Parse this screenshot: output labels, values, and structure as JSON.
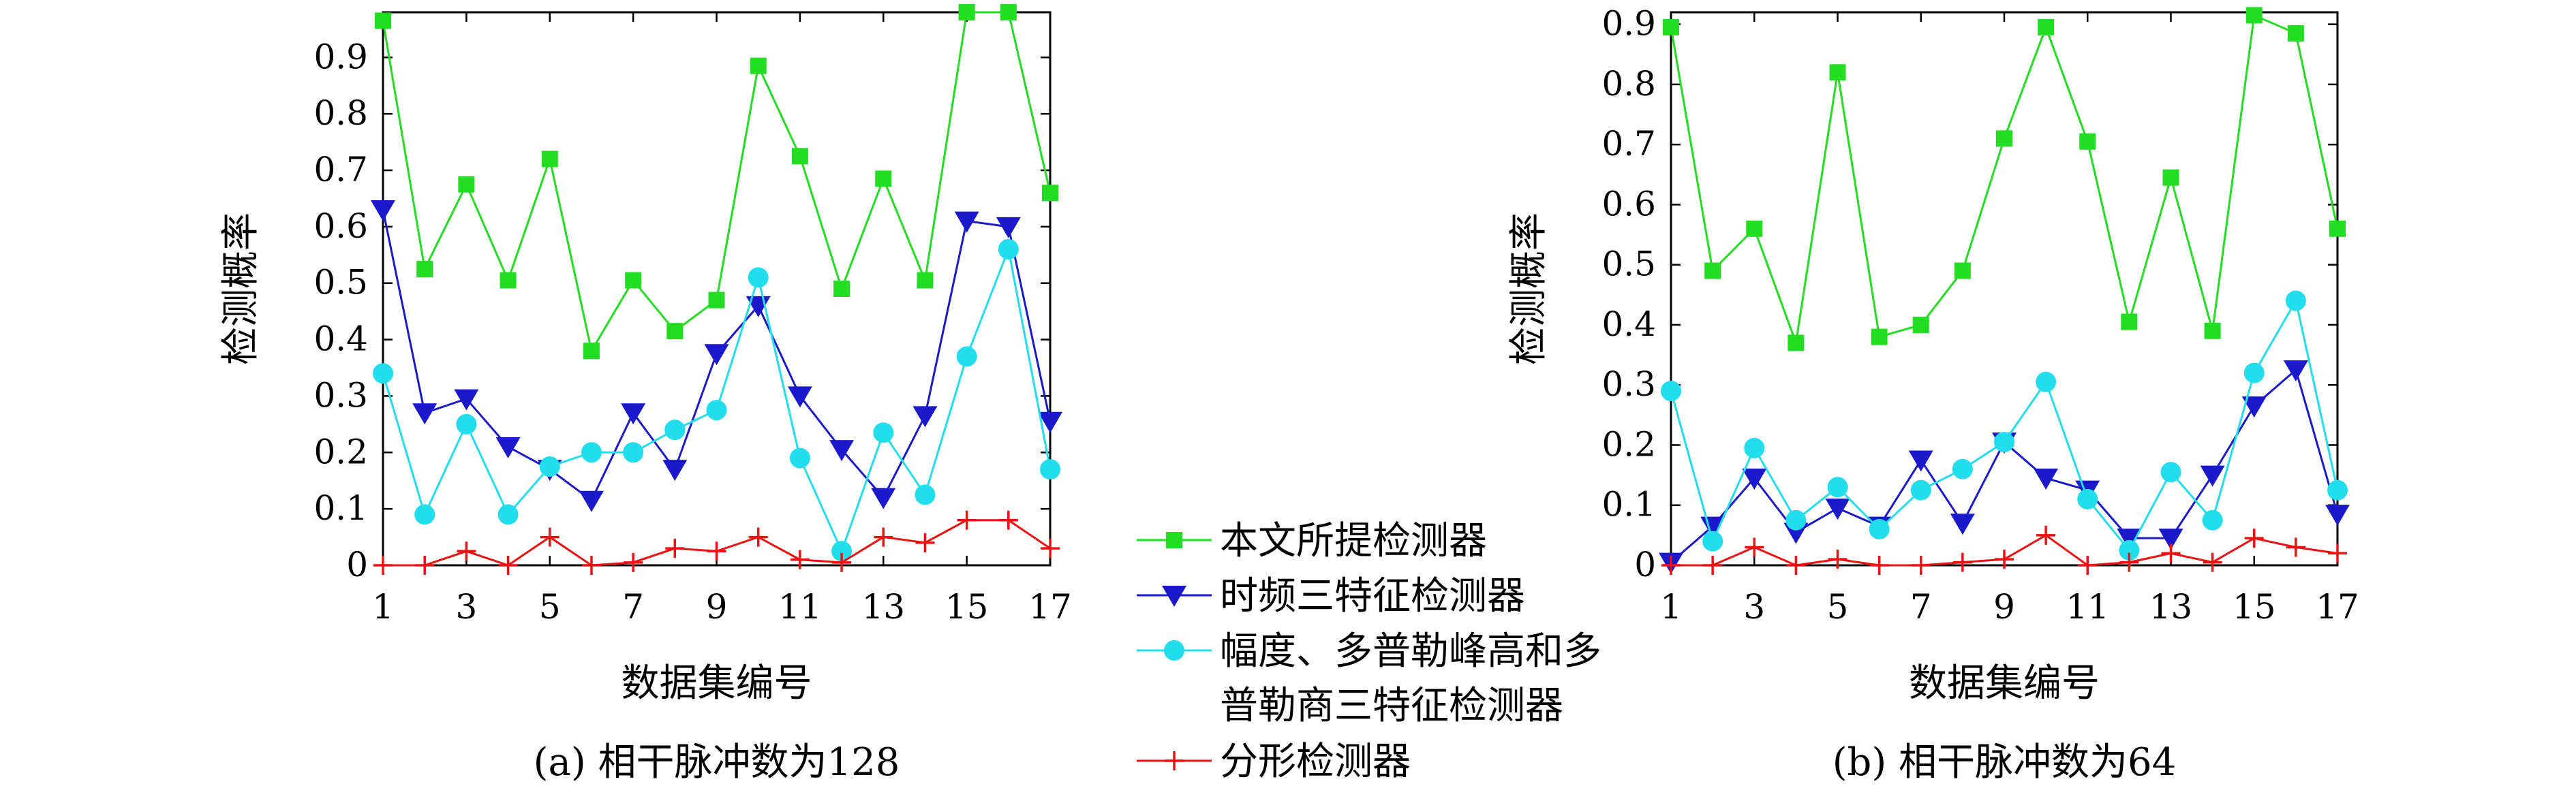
{
  "legend": {
    "placement": "center",
    "entries": [
      {
        "series": 0,
        "lines": [
          "本文所提检测器"
        ]
      },
      {
        "series": 1,
        "lines": [
          "时频三特征检测器"
        ]
      },
      {
        "series": 2,
        "lines": [
          "幅度、多普勒峰高和多",
          "普勒商三特征检测器"
        ]
      },
      {
        "series": 3,
        "lines": [
          "分形检测器"
        ]
      }
    ]
  },
  "chart_data": [
    {
      "type": "line",
      "caption": "(a) 相干脉冲数为128",
      "xlabel": "数据集编号",
      "ylabel": "检测概率",
      "xlim": [
        1,
        17
      ],
      "ylim": [
        0,
        0.98
      ],
      "xticks": [
        1,
        3,
        5,
        7,
        9,
        11,
        13,
        15,
        17
      ],
      "yticks": [
        0,
        0.1,
        0.2,
        0.3,
        0.4,
        0.5,
        0.6,
        0.7,
        0.8,
        0.9
      ],
      "x": [
        1,
        2,
        3,
        4,
        5,
        6,
        7,
        8,
        9,
        10,
        11,
        12,
        13,
        14,
        15,
        16,
        17
      ],
      "series": [
        {
          "name": "本文所提检测器",
          "color": "#22dd22",
          "marker": "square",
          "values": [
            0.965,
            0.525,
            0.675,
            0.505,
            0.72,
            0.38,
            0.505,
            0.415,
            0.47,
            0.885,
            0.725,
            0.49,
            0.685,
            0.505,
            0.98,
            0.98,
            0.66
          ]
        },
        {
          "name": "时频三特征检测器",
          "color": "#1a1acc",
          "marker": "triangle-down",
          "values": [
            0.63,
            0.27,
            0.295,
            0.21,
            0.17,
            0.115,
            0.27,
            0.17,
            0.375,
            0.46,
            0.3,
            0.205,
            0.12,
            0.265,
            0.61,
            0.6,
            0.255
          ]
        },
        {
          "name": "幅度、多普勒峰高和多普勒商三特征检测器",
          "color": "#22ddee",
          "marker": "circle",
          "values": [
            0.34,
            0.09,
            0.25,
            0.09,
            0.175,
            0.2,
            0.2,
            0.24,
            0.275,
            0.51,
            0.19,
            0.025,
            0.235,
            0.125,
            0.37,
            0.56,
            0.17
          ]
        },
        {
          "name": "分形检测器",
          "color": "#ee1111",
          "marker": "plus",
          "values": [
            0,
            0,
            0.025,
            0,
            0.05,
            0,
            0.005,
            0.03,
            0.025,
            0.05,
            0.01,
            0.005,
            0.05,
            0.04,
            0.08,
            0.08,
            0.03
          ]
        }
      ]
    },
    {
      "type": "line",
      "caption": "(b) 相干脉冲数为64",
      "xlabel": "数据集编号",
      "ylabel": "检测概率",
      "xlim": [
        1,
        17
      ],
      "ylim": [
        0,
        0.92
      ],
      "xticks": [
        1,
        3,
        5,
        7,
        9,
        11,
        13,
        15,
        17
      ],
      "yticks": [
        0,
        0.1,
        0.2,
        0.3,
        0.4,
        0.5,
        0.6,
        0.7,
        0.8,
        0.9
      ],
      "x": [
        1,
        2,
        3,
        4,
        5,
        6,
        7,
        8,
        9,
        10,
        11,
        12,
        13,
        14,
        15,
        16,
        17
      ],
      "series": [
        {
          "name": "本文所提检测器",
          "color": "#22dd22",
          "marker": "square",
          "values": [
            0.895,
            0.49,
            0.56,
            0.37,
            0.82,
            0.38,
            0.4,
            0.49,
            0.71,
            0.895,
            0.705,
            0.405,
            0.645,
            0.39,
            0.915,
            0.885,
            0.56
          ]
        },
        {
          "name": "时频三特征检测器",
          "color": "#1a1acc",
          "marker": "triangle-down",
          "values": [
            0.005,
            0.065,
            0.145,
            0.055,
            0.095,
            0.065,
            0.175,
            0.07,
            0.205,
            0.145,
            0.125,
            0.045,
            0.045,
            0.15,
            0.265,
            0.325,
            0.085
          ]
        },
        {
          "name": "幅度、多普勒峰高和多普勒商三特征检测器",
          "color": "#22ddee",
          "marker": "circle",
          "values": [
            0.29,
            0.04,
            0.195,
            0.075,
            0.13,
            0.06,
            0.125,
            0.16,
            0.205,
            0.305,
            0.11,
            0.025,
            0.155,
            0.075,
            0.32,
            0.44,
            0.125
          ]
        },
        {
          "name": "分形检测器",
          "color": "#ee1111",
          "marker": "plus",
          "values": [
            0,
            0,
            0.03,
            0,
            0.01,
            0,
            0,
            0.005,
            0.01,
            0.05,
            0,
            0.005,
            0.02,
            0.005,
            0.045,
            0.03,
            0.02
          ]
        }
      ]
    }
  ]
}
